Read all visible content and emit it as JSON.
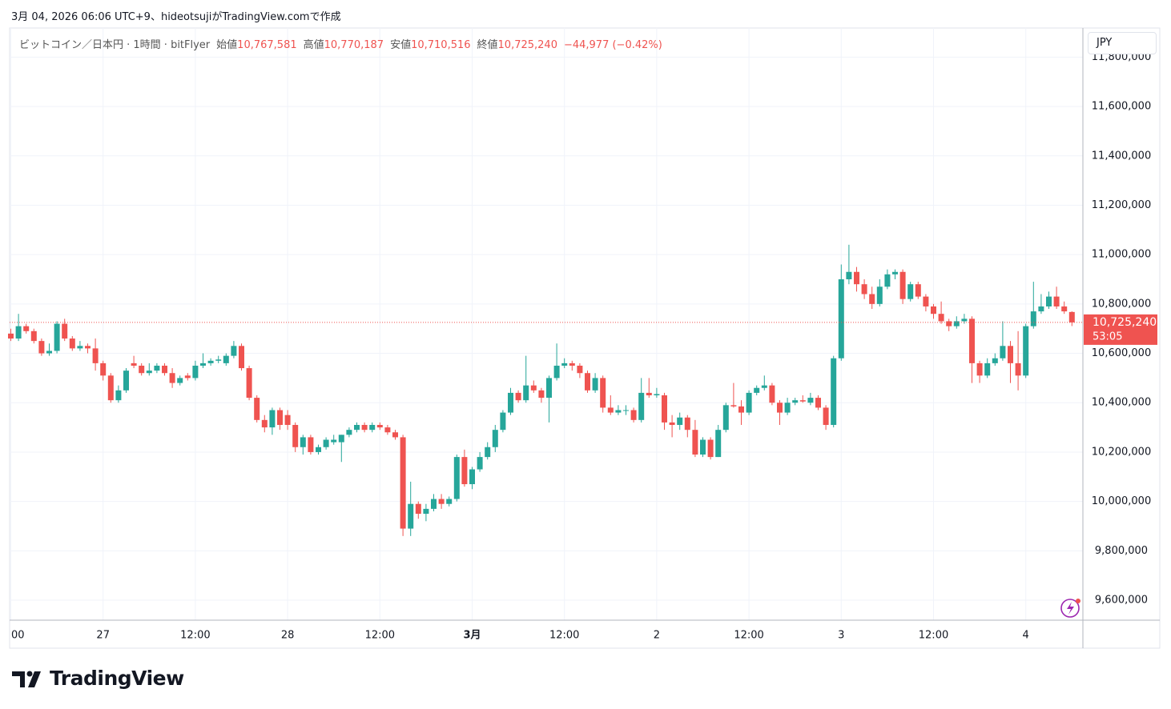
{
  "created_by": "3月 04, 2026 06:06 UTC+9、hideotsujiがTradingView.comで作成",
  "brand": "TradingView",
  "chart_data": {
    "type": "candlestick",
    "symbol": "ビットコイン／日本円 · 1時間 · bitFlyer",
    "summary": [
      {
        "name": "始値",
        "value_label": "10,767,581"
      },
      {
        "name": "高値",
        "value_label": "10,770,187"
      },
      {
        "name": "安値",
        "value_label": "10,710,516"
      },
      {
        "name": "終値",
        "value_label": "10,725,240"
      }
    ],
    "change_label": "−44,977 (−0.42%)",
    "currency": "JPY",
    "last_price_label": "10,725,240",
    "countdown": "53:05",
    "up_color": "#26a69a",
    "down_color": "#ef5350",
    "grid": true,
    "ylim": [
      9519000,
      11918000
    ],
    "yticks": [
      {
        "value": 9600000,
        "label": "9,600,000"
      },
      {
        "value": 9800000,
        "label": "9,800,000"
      },
      {
        "value": 10000000,
        "label": "10,000,000"
      },
      {
        "value": 10200000,
        "label": "10,200,000"
      },
      {
        "value": 10400000,
        "label": "10,400,000"
      },
      {
        "value": 10600000,
        "label": "10,600,000"
      },
      {
        "value": 10800000,
        "label": "10,800,000"
      },
      {
        "value": 11000000,
        "label": "11,000,000"
      },
      {
        "value": 11200000,
        "label": "11,200,000"
      },
      {
        "value": 11400000,
        "label": "11,400,000"
      },
      {
        "value": 11600000,
        "label": "11,600,000"
      },
      {
        "value": 11800000,
        "label": "11,800,000"
      }
    ],
    "categories": [
      "00",
      null,
      null,
      null,
      null,
      null,
      null,
      null,
      null,
      null,
      null,
      null,
      "27",
      null,
      null,
      null,
      null,
      null,
      null,
      null,
      null,
      null,
      null,
      null,
      "12:00",
      null,
      null,
      null,
      null,
      null,
      null,
      null,
      null,
      null,
      null,
      null,
      "28",
      null,
      null,
      null,
      null,
      null,
      null,
      null,
      null,
      null,
      null,
      null,
      "12:00",
      null,
      null,
      null,
      null,
      null,
      null,
      null,
      null,
      null,
      null,
      null,
      "3月",
      null,
      null,
      null,
      null,
      null,
      null,
      null,
      null,
      null,
      null,
      null,
      "12:00",
      null,
      null,
      null,
      null,
      null,
      null,
      null,
      null,
      null,
      null,
      null,
      "2",
      null,
      null,
      null,
      null,
      null,
      null,
      null,
      null,
      null,
      null,
      null,
      "12:00",
      null,
      null,
      null,
      null,
      null,
      null,
      null,
      null,
      null,
      null,
      null,
      "3",
      null,
      null,
      null,
      null,
      null,
      null,
      null,
      null,
      null,
      null,
      null,
      "12:00",
      null,
      null,
      null,
      null,
      null,
      null,
      null,
      null,
      null,
      null,
      null,
      "4",
      null,
      null,
      null,
      null,
      null,
      null
    ],
    "ohlc": [
      [
        10680000,
        10700000,
        10650000,
        10660000
      ],
      [
        10660000,
        10760000,
        10650000,
        10710000
      ],
      [
        10710000,
        10720000,
        10680000,
        10690000
      ],
      [
        10690000,
        10700000,
        10640000,
        10650000
      ],
      [
        10650000,
        10660000,
        10590000,
        10600000
      ],
      [
        10600000,
        10640000,
        10590000,
        10610000
      ],
      [
        10610000,
        10730000,
        10600000,
        10720000
      ],
      [
        10720000,
        10740000,
        10650000,
        10660000
      ],
      [
        10660000,
        10670000,
        10610000,
        10620000
      ],
      [
        10620000,
        10650000,
        10610000,
        10630000
      ],
      [
        10630000,
        10640000,
        10600000,
        10620000
      ],
      [
        10620000,
        10660000,
        10530000,
        10560000
      ],
      [
        10560000,
        10570000,
        10490000,
        10510000
      ],
      [
        10510000,
        10520000,
        10400000,
        10410000
      ],
      [
        10410000,
        10470000,
        10400000,
        10450000
      ],
      [
        10450000,
        10540000,
        10440000,
        10530000
      ],
      [
        10560000,
        10590000,
        10540000,
        10550000
      ],
      [
        10550000,
        10560000,
        10510000,
        10520000
      ],
      [
        10520000,
        10560000,
        10510000,
        10530000
      ],
      [
        10530000,
        10560000,
        10520000,
        10550000
      ],
      [
        10550000,
        10560000,
        10510000,
        10520000
      ],
      [
        10520000,
        10540000,
        10460000,
        10480000
      ],
      [
        10480000,
        10510000,
        10470000,
        10500000
      ],
      [
        10510000,
        10520000,
        10490000,
        10500000
      ],
      [
        10500000,
        10570000,
        10490000,
        10550000
      ],
      [
        10550000,
        10600000,
        10540000,
        10560000
      ],
      [
        10560000,
        10580000,
        10550000,
        10570000
      ],
      [
        10570000,
        10590000,
        10560000,
        10575000
      ],
      [
        10560000,
        10600000,
        10550000,
        10590000
      ],
      [
        10590000,
        10650000,
        10580000,
        10630000
      ],
      [
        10630000,
        10640000,
        10530000,
        10540000
      ],
      [
        10540000,
        10550000,
        10410000,
        10420000
      ],
      [
        10420000,
        10430000,
        10320000,
        10330000
      ],
      [
        10330000,
        10350000,
        10280000,
        10300000
      ],
      [
        10300000,
        10380000,
        10270000,
        10370000
      ],
      [
        10370000,
        10380000,
        10290000,
        10310000
      ],
      [
        10350000,
        10370000,
        10290000,
        10310000
      ],
      [
        10310000,
        10320000,
        10200000,
        10220000
      ],
      [
        10220000,
        10270000,
        10190000,
        10260000
      ],
      [
        10260000,
        10270000,
        10190000,
        10200000
      ],
      [
        10200000,
        10230000,
        10190000,
        10220000
      ],
      [
        10220000,
        10260000,
        10210000,
        10250000
      ],
      [
        10240000,
        10270000,
        10230000,
        10250000
      ],
      [
        10240000,
        10270000,
        10160000,
        10270000
      ],
      [
        10270000,
        10300000,
        10260000,
        10290000
      ],
      [
        10290000,
        10320000,
        10280000,
        10310000
      ],
      [
        10310000,
        10320000,
        10280000,
        10290000
      ],
      [
        10290000,
        10320000,
        10280000,
        10310000
      ],
      [
        10310000,
        10320000,
        10290000,
        10300000
      ],
      [
        10300000,
        10310000,
        10270000,
        10280000
      ],
      [
        10280000,
        10290000,
        10250000,
        10260000
      ],
      [
        10260000,
        10270000,
        9860000,
        9890000
      ],
      [
        9890000,
        10080000,
        9860000,
        9990000
      ],
      [
        9990000,
        10000000,
        9930000,
        9950000
      ],
      [
        9950000,
        9990000,
        9920000,
        9970000
      ],
      [
        9970000,
        10030000,
        9960000,
        10010000
      ],
      [
        10010000,
        10030000,
        9970000,
        9990000
      ],
      [
        9990000,
        10020000,
        9980000,
        10010000
      ],
      [
        10010000,
        10190000,
        10000000,
        10180000
      ],
      [
        10180000,
        10210000,
        10060000,
        10070000
      ],
      [
        10070000,
        10140000,
        10050000,
        10130000
      ],
      [
        10130000,
        10200000,
        10120000,
        10180000
      ],
      [
        10180000,
        10240000,
        10170000,
        10220000
      ],
      [
        10220000,
        10310000,
        10200000,
        10290000
      ],
      [
        10290000,
        10370000,
        10280000,
        10360000
      ],
      [
        10360000,
        10460000,
        10350000,
        10440000
      ],
      [
        10440000,
        10450000,
        10400000,
        10410000
      ],
      [
        10410000,
        10590000,
        10400000,
        10470000
      ],
      [
        10470000,
        10490000,
        10440000,
        10450000
      ],
      [
        10450000,
        10460000,
        10400000,
        10420000
      ],
      [
        10420000,
        10510000,
        10320000,
        10500000
      ],
      [
        10500000,
        10640000,
        10490000,
        10550000
      ],
      [
        10550000,
        10580000,
        10540000,
        10560000
      ],
      [
        10560000,
        10570000,
        10530000,
        10550000
      ],
      [
        10550000,
        10560000,
        10500000,
        10520000
      ],
      [
        10520000,
        10530000,
        10440000,
        10450000
      ],
      [
        10450000,
        10520000,
        10440000,
        10500000
      ],
      [
        10500000,
        10510000,
        10360000,
        10380000
      ],
      [
        10380000,
        10430000,
        10350000,
        10360000
      ],
      [
        10360000,
        10390000,
        10350000,
        10370000
      ],
      [
        10370000,
        10390000,
        10350000,
        10370000
      ],
      [
        10370000,
        10380000,
        10320000,
        10330000
      ],
      [
        10330000,
        10500000,
        10320000,
        10440000
      ],
      [
        10440000,
        10500000,
        10420000,
        10430000
      ],
      [
        10430000,
        10460000,
        10420000,
        10435000
      ],
      [
        10430000,
        10440000,
        10290000,
        10320000
      ],
      [
        10320000,
        10350000,
        10260000,
        10310000
      ],
      [
        10310000,
        10360000,
        10290000,
        10340000
      ],
      [
        10340000,
        10350000,
        10260000,
        10290000
      ],
      [
        10290000,
        10330000,
        10180000,
        10190000
      ],
      [
        10190000,
        10260000,
        10180000,
        10250000
      ],
      [
        10250000,
        10260000,
        10170000,
        10180000
      ],
      [
        10180000,
        10310000,
        10180000,
        10290000
      ],
      [
        10290000,
        10400000,
        10280000,
        10390000
      ],
      [
        10390000,
        10480000,
        10380000,
        10385000
      ],
      [
        10385000,
        10410000,
        10310000,
        10360000
      ],
      [
        10360000,
        10450000,
        10350000,
        10440000
      ],
      [
        10440000,
        10470000,
        10430000,
        10460000
      ],
      [
        10460000,
        10510000,
        10450000,
        10470000
      ],
      [
        10470000,
        10480000,
        10390000,
        10400000
      ],
      [
        10400000,
        10410000,
        10310000,
        10360000
      ],
      [
        10360000,
        10420000,
        10350000,
        10400000
      ],
      [
        10400000,
        10420000,
        10390000,
        10410000
      ],
      [
        10410000,
        10430000,
        10400000,
        10405000
      ],
      [
        10400000,
        10440000,
        10390000,
        10420000
      ],
      [
        10420000,
        10430000,
        10370000,
        10380000
      ],
      [
        10380000,
        10390000,
        10290000,
        10310000
      ],
      [
        10310000,
        10590000,
        10300000,
        10580000
      ],
      [
        10580000,
        10960000,
        10570000,
        10900000
      ],
      [
        10900000,
        11040000,
        10880000,
        10930000
      ],
      [
        10930000,
        10950000,
        10850000,
        10880000
      ],
      [
        10880000,
        10900000,
        10820000,
        10840000
      ],
      [
        10840000,
        10870000,
        10780000,
        10800000
      ],
      [
        10800000,
        10900000,
        10790000,
        10870000
      ],
      [
        10870000,
        10940000,
        10860000,
        10920000
      ],
      [
        10920000,
        10940000,
        10900000,
        10930000
      ],
      [
        10930000,
        10940000,
        10800000,
        10820000
      ],
      [
        10820000,
        10890000,
        10810000,
        10880000
      ],
      [
        10880000,
        10890000,
        10820000,
        10830000
      ],
      [
        10830000,
        10840000,
        10770000,
        10790000
      ],
      [
        10790000,
        10800000,
        10740000,
        10760000
      ],
      [
        10760000,
        10810000,
        10720000,
        10730000
      ],
      [
        10730000,
        10740000,
        10690000,
        10710000
      ],
      [
        10710000,
        10750000,
        10700000,
        10730000
      ],
      [
        10730000,
        10760000,
        10720000,
        10740000
      ],
      [
        10740000,
        10750000,
        10480000,
        10560000
      ],
      [
        10560000,
        10570000,
        10480000,
        10510000
      ],
      [
        10510000,
        10580000,
        10500000,
        10560000
      ],
      [
        10560000,
        10600000,
        10550000,
        10580000
      ],
      [
        10580000,
        10730000,
        10570000,
        10630000
      ],
      [
        10630000,
        10650000,
        10480000,
        10560000
      ],
      [
        10560000,
        10690000,
        10450000,
        10510000
      ],
      [
        10510000,
        10720000,
        10500000,
        10710000
      ],
      [
        10710000,
        10890000,
        10700000,
        10770000
      ],
      [
        10770000,
        10840000,
        10760000,
        10790000
      ],
      [
        10790000,
        10850000,
        10780000,
        10830000
      ],
      [
        10830000,
        10870000,
        10780000,
        10790000
      ],
      [
        10790000,
        10810000,
        10760000,
        10770000
      ],
      [
        10767581,
        10770187,
        10710516,
        10725240
      ]
    ]
  }
}
